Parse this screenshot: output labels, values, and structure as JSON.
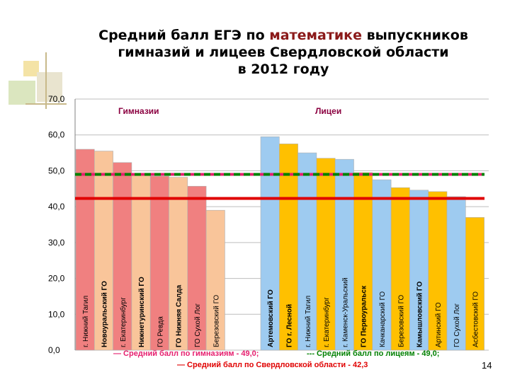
{
  "title": {
    "line1_pre": "Средний балл ЕГЭ по ",
    "line1_accent": "математике",
    "line1_post": " выпускников",
    "line2": "гимназий и лицеев Свердловской области",
    "line3": "в 2012 году"
  },
  "page_number": "14",
  "colors": {
    "gym_a": "#f08080",
    "gym_b": "#f9c59a",
    "lyc_a": "#9ecbf0",
    "lyc_b": "#ffc000",
    "line_gym": "#e61e6e",
    "line_lyc": "#008000",
    "line_region": "#e00000",
    "group_label": "#8b0040"
  },
  "legend": {
    "gym": "— Средний балл по гимназиям - 49,0;",
    "lyc": "--- Средний балл по лицеям - 49,0;",
    "region": "— Средний балл по Свердловской области - 42,3"
  },
  "chart_data": {
    "type": "bar",
    "ylim": [
      0,
      70
    ],
    "yticks": [
      "0,0",
      "10,0",
      "20,0",
      "30,0",
      "40,0",
      "50,0",
      "60,0",
      "70,0"
    ],
    "groups": [
      {
        "label": "Гимназии",
        "categories": [
          "г. Нижний Тагил",
          "Новоуральский ГО",
          "г. Екатеринбург",
          "Нижнетуринский ГО",
          "ГО Ревда",
          "ГО Нижняя Салда",
          "ГО Сухой Лог",
          "Березовский ГО"
        ],
        "values": [
          56.0,
          55.5,
          52.3,
          49.0,
          48.5,
          48.2,
          45.7,
          39.0
        ],
        "colors": [
          "#f08080",
          "#f9c59a",
          "#f08080",
          "#f9c59a",
          "#f08080",
          "#f9c59a",
          "#f08080",
          "#f9c59a"
        ]
      },
      {
        "label": "Лицеи",
        "categories": [
          "Артемовский ГО",
          "ГО г. Лесной",
          "г. Нижний Тагил",
          "г. Екатеринбург",
          "г. Каменск-Уральский",
          "ГО Первоуральск",
          "Качканарский ГО",
          "Березовский ГО",
          "Камышловский ГО",
          "Артинский ГО",
          "ГО Сухой Лог",
          "Асбестовский ГО"
        ],
        "values": [
          59.5,
          57.5,
          55.0,
          53.5,
          53.2,
          49.5,
          47.5,
          45.3,
          44.6,
          44.2,
          42.8,
          37.0
        ],
        "colors": [
          "#9ecbf0",
          "#ffc000",
          "#9ecbf0",
          "#ffc000",
          "#9ecbf0",
          "#ffc000",
          "#9ecbf0",
          "#ffc000",
          "#9ecbf0",
          "#ffc000",
          "#9ecbf0",
          "#ffc000"
        ]
      }
    ],
    "reference_lines": [
      {
        "value": 49.0,
        "style": "dashed",
        "color": "#008000"
      },
      {
        "value": 49.0,
        "style": "dashed",
        "color": "#e61e6e"
      },
      {
        "value": 42.3,
        "style": "solid",
        "color": "#e00000"
      }
    ]
  }
}
